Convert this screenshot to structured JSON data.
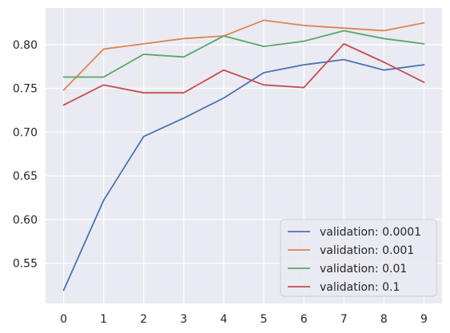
{
  "chart_data": {
    "type": "line",
    "title": "",
    "xlabel": "",
    "ylabel": "",
    "x": [
      0,
      1,
      2,
      3,
      4,
      5,
      6,
      7,
      8,
      9
    ],
    "xlim": [
      -0.45,
      9.45
    ],
    "ylim": [
      0.504,
      0.842
    ],
    "x_ticks": [
      "0",
      "1",
      "2",
      "3",
      "4",
      "5",
      "6",
      "7",
      "8",
      "9"
    ],
    "y_ticks": [
      0.55,
      0.6,
      0.65,
      0.7,
      0.75,
      0.8
    ],
    "y_tick_labels": [
      "0.55",
      "0.60",
      "0.65",
      "0.70",
      "0.75",
      "0.80"
    ],
    "grid": true,
    "legend_position": "bottom-right",
    "series": [
      {
        "name": "validation: 0.0001",
        "color": "#4c72b0",
        "values": [
          0.519,
          0.622,
          0.695,
          0.716,
          0.739,
          0.768,
          0.777,
          0.783,
          0.771,
          0.777
        ]
      },
      {
        "name": "validation: 0.001",
        "color": "#dd8452",
        "values": [
          0.748,
          0.795,
          0.801,
          0.807,
          0.81,
          0.828,
          0.822,
          0.819,
          0.816,
          0.825
        ]
      },
      {
        "name": "validation: 0.01",
        "color": "#55a868",
        "values": [
          0.763,
          0.763,
          0.789,
          0.786,
          0.81,
          0.798,
          0.804,
          0.816,
          0.807,
          0.801
        ]
      },
      {
        "name": "validation: 0.1",
        "color": "#c44e52",
        "values": [
          0.731,
          0.754,
          0.745,
          0.745,
          0.771,
          0.754,
          0.751,
          0.801,
          0.78,
          0.757
        ]
      }
    ]
  }
}
